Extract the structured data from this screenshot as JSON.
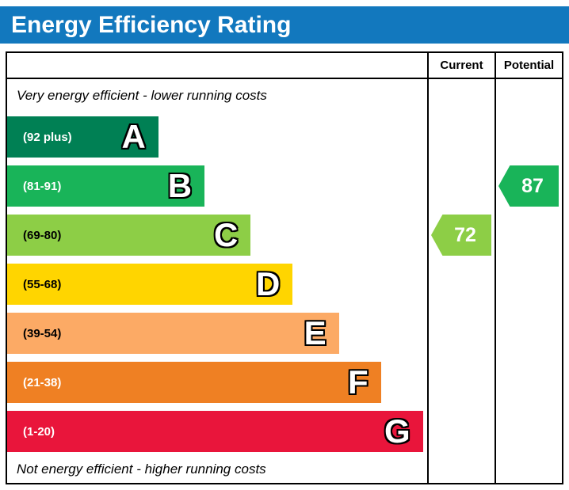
{
  "title": "Energy Efficiency Rating",
  "header": {
    "current": "Current",
    "potential": "Potential"
  },
  "notes": {
    "top": "Very energy efficient - lower running costs",
    "bottom": "Not energy efficient - higher running costs"
  },
  "bands": [
    {
      "letter": "A",
      "range": "(92 plus)",
      "color": "#008054",
      "text_color": "#ffffff",
      "width_pct": 36
    },
    {
      "letter": "B",
      "range": "(81-91)",
      "color": "#19b459",
      "text_color": "#ffffff",
      "width_pct": 47
    },
    {
      "letter": "C",
      "range": "(69-80)",
      "color": "#8dce46",
      "text_color": "#000000",
      "width_pct": 58
    },
    {
      "letter": "D",
      "range": "(55-68)",
      "color": "#ffd500",
      "text_color": "#000000",
      "width_pct": 68
    },
    {
      "letter": "E",
      "range": "(39-54)",
      "color": "#fcaa65",
      "text_color": "#000000",
      "width_pct": 79
    },
    {
      "letter": "F",
      "range": "(21-38)",
      "color": "#ef8023",
      "text_color": "#ffffff",
      "width_pct": 89
    },
    {
      "letter": "G",
      "range": "(1-20)",
      "color": "#e9153b",
      "text_color": "#ffffff",
      "width_pct": 99
    }
  ],
  "ratings": {
    "current": {
      "value": "72",
      "color": "#8dce46",
      "band_index": 2
    },
    "potential": {
      "value": "87",
      "color": "#19b459",
      "band_index": 1
    }
  },
  "chart_data": {
    "type": "bar",
    "title": "Energy Efficiency Rating",
    "categories": [
      "A (92 plus)",
      "B (81-91)",
      "C (69-80)",
      "D (55-68)",
      "E (39-54)",
      "F (21-38)",
      "G (1-20)"
    ],
    "values": [
      36,
      47,
      58,
      68,
      79,
      89,
      99
    ],
    "value_note": "bar lengths as percent of rating column width (decorative band widths)",
    "band_colors": [
      "#008054",
      "#19b459",
      "#8dce46",
      "#ffd500",
      "#fcaa65",
      "#ef8023",
      "#e9153b"
    ],
    "current_rating": 72,
    "current_band": "C",
    "potential_rating": 87,
    "potential_band": "B",
    "columns": [
      "Current",
      "Potential"
    ],
    "annotations": [
      "Very energy efficient - lower running costs",
      "Not energy efficient - higher running costs"
    ]
  }
}
